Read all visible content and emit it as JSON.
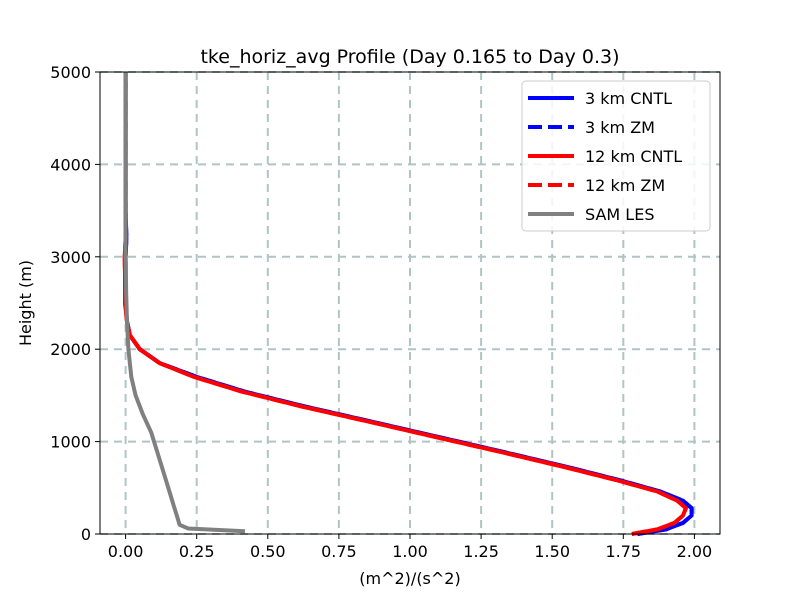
{
  "chart_data": {
    "type": "line",
    "title": "tke_horiz_avg Profile (Day 0.165 to Day 0.3)",
    "xlabel": "(m^2)/(s^2)",
    "ylabel": "Height (m)",
    "xlim": [
      -0.09,
      2.09
    ],
    "ylim": [
      0,
      5000
    ],
    "xticks": [
      0.0,
      0.25,
      0.5,
      0.75,
      1.0,
      1.25,
      1.5,
      1.75,
      2.0
    ],
    "xtick_labels": [
      "0.00",
      "0.25",
      "0.50",
      "0.75",
      "1.00",
      "1.25",
      "1.50",
      "1.75",
      "2.00"
    ],
    "yticks": [
      0,
      1000,
      2000,
      3000,
      4000,
      5000
    ],
    "ytick_labels": [
      "0",
      "1000",
      "2000",
      "3000",
      "4000",
      "5000"
    ],
    "grid": true,
    "legend_position": "top-right",
    "series": [
      {
        "name": "3 km CNTL",
        "color": "#0000ff",
        "style": "solid",
        "x": [
          1.8,
          1.9,
          1.96,
          1.99,
          1.99,
          1.96,
          1.88,
          1.74,
          1.56,
          1.34,
          1.1,
          0.86,
          0.63,
          0.42,
          0.25,
          0.12,
          0.05,
          0.015,
          0.005,
          0.0,
          0.0,
          0.0,
          0.003,
          0.0,
          0.0,
          0.0,
          0.0
        ],
        "y": [
          0,
          50,
          120,
          200,
          280,
          360,
          460,
          580,
          720,
          880,
          1050,
          1220,
          1380,
          1540,
          1700,
          1850,
          2000,
          2150,
          2300,
          2500,
          2800,
          3000,
          3200,
          3500,
          4000,
          4500,
          5000
        ]
      },
      {
        "name": "3 km ZM",
        "color": "#0000ff",
        "style": "dashed",
        "x": [
          1.8,
          1.9,
          1.96,
          1.99,
          1.99,
          1.96,
          1.88,
          1.74,
          1.56,
          1.34,
          1.1,
          0.86,
          0.63,
          0.42,
          0.25,
          0.12,
          0.05,
          0.015,
          0.005,
          0.0,
          0.0,
          0.0,
          0.003,
          0.0,
          0.0,
          0.0,
          0.0
        ],
        "y": [
          0,
          50,
          120,
          200,
          280,
          360,
          460,
          580,
          720,
          880,
          1050,
          1220,
          1380,
          1540,
          1700,
          1850,
          2000,
          2150,
          2300,
          2500,
          2800,
          3000,
          3200,
          3500,
          4000,
          4500,
          5000
        ]
      },
      {
        "name": "12 km CNTL",
        "color": "#ff0000",
        "style": "solid",
        "x": [
          1.78,
          1.87,
          1.93,
          1.96,
          1.97,
          1.94,
          1.87,
          1.73,
          1.55,
          1.33,
          1.09,
          0.85,
          0.62,
          0.41,
          0.24,
          0.12,
          0.05,
          0.015,
          0.005,
          -0.002,
          -0.002,
          -0.003,
          0.0,
          0.0,
          0.0,
          0.0,
          0.0
        ],
        "y": [
          0,
          50,
          120,
          200,
          280,
          360,
          460,
          580,
          720,
          880,
          1050,
          1220,
          1380,
          1540,
          1700,
          1850,
          2000,
          2150,
          2300,
          2500,
          2800,
          3000,
          3200,
          3500,
          4000,
          4500,
          5000
        ]
      },
      {
        "name": "12 km ZM",
        "color": "#ff0000",
        "style": "dashed",
        "x": [
          1.78,
          1.87,
          1.93,
          1.96,
          1.97,
          1.94,
          1.87,
          1.73,
          1.55,
          1.33,
          1.09,
          0.85,
          0.62,
          0.41,
          0.24,
          0.12,
          0.05,
          0.015,
          0.005,
          -0.002,
          -0.002,
          -0.003,
          0.0,
          0.0,
          0.0,
          0.0,
          0.0
        ],
        "y": [
          0,
          50,
          120,
          200,
          280,
          360,
          460,
          580,
          720,
          880,
          1050,
          1220,
          1380,
          1540,
          1700,
          1850,
          2000,
          2150,
          2300,
          2500,
          2800,
          3000,
          3200,
          3500,
          4000,
          4500,
          5000
        ]
      },
      {
        "name": "SAM LES",
        "color": "#808080",
        "style": "solid",
        "x": [
          0.42,
          0.22,
          0.19,
          0.18,
          0.17,
          0.16,
          0.15,
          0.13,
          0.11,
          0.09,
          0.06,
          0.035,
          0.02,
          0.01,
          0.005,
          0.002,
          0.0,
          0.0,
          0.0,
          0.0
        ],
        "y": [
          30,
          60,
          100,
          200,
          300,
          400,
          500,
          700,
          900,
          1100,
          1300,
          1500,
          1700,
          2000,
          2300,
          2600,
          3000,
          3500,
          4000,
          5000
        ]
      }
    ]
  }
}
